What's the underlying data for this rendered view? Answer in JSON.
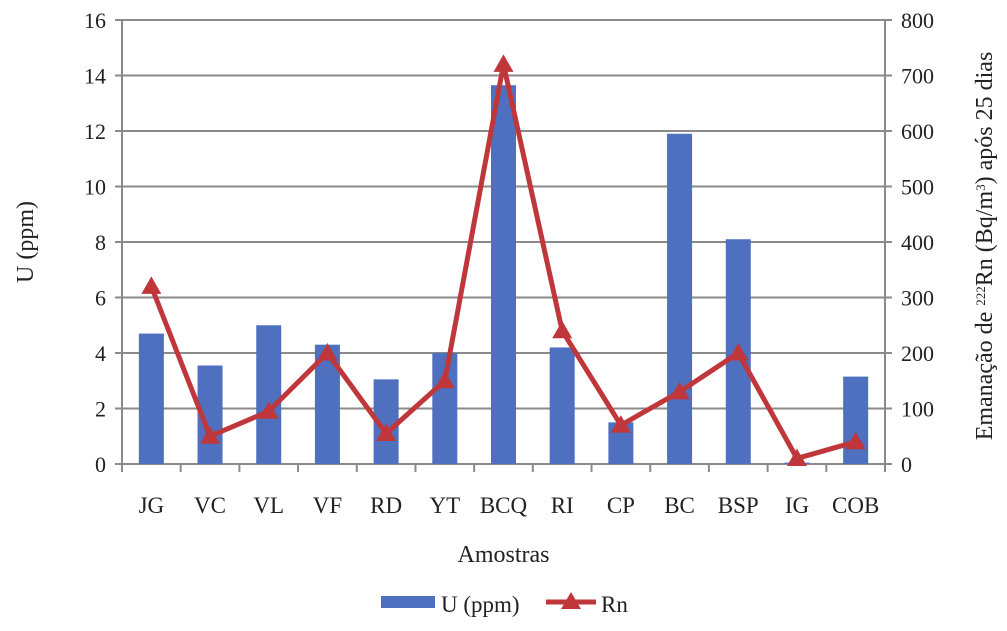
{
  "chart_data": {
    "type": "bar",
    "categories": [
      "JG",
      "VC",
      "VL",
      "VF",
      "RD",
      "YT",
      "BCQ",
      "RI",
      "CP",
      "BC",
      "BSP",
      "IG",
      "COB"
    ],
    "series": [
      {
        "name": "U (ppm)",
        "type": "bar",
        "axis": "left",
        "color": "#4f6fbf",
        "values": [
          4.7,
          3.55,
          5.0,
          4.3,
          3.05,
          4.0,
          13.65,
          4.2,
          1.5,
          11.9,
          8.1,
          0.05,
          3.15
        ]
      },
      {
        "name": "Rn",
        "type": "line",
        "axis": "right",
        "color": "#c0373b",
        "marker": "triangle",
        "values": [
          320,
          50,
          95,
          200,
          55,
          150,
          720,
          240,
          70,
          130,
          200,
          10,
          40
        ]
      }
    ],
    "xlabel": "Amostras",
    "ylabel": "U (ppm)",
    "ylabel_right": {
      "prefix": "Emanação de ",
      "sup1": "222",
      "mid": "Rn (Bq/m",
      "sup2": "3",
      "suffix": ") após 25 dias"
    },
    "ylim": [
      0,
      16
    ],
    "yticks": [
      "0",
      "2",
      "4",
      "6",
      "8",
      "10",
      "12",
      "14",
      "16"
    ],
    "ylim_right": [
      0,
      800
    ],
    "yticks_right": [
      "0",
      "100",
      "200",
      "300",
      "400",
      "500",
      "600",
      "700",
      "800"
    ],
    "grid": true,
    "legend_position": "bottom-center"
  }
}
